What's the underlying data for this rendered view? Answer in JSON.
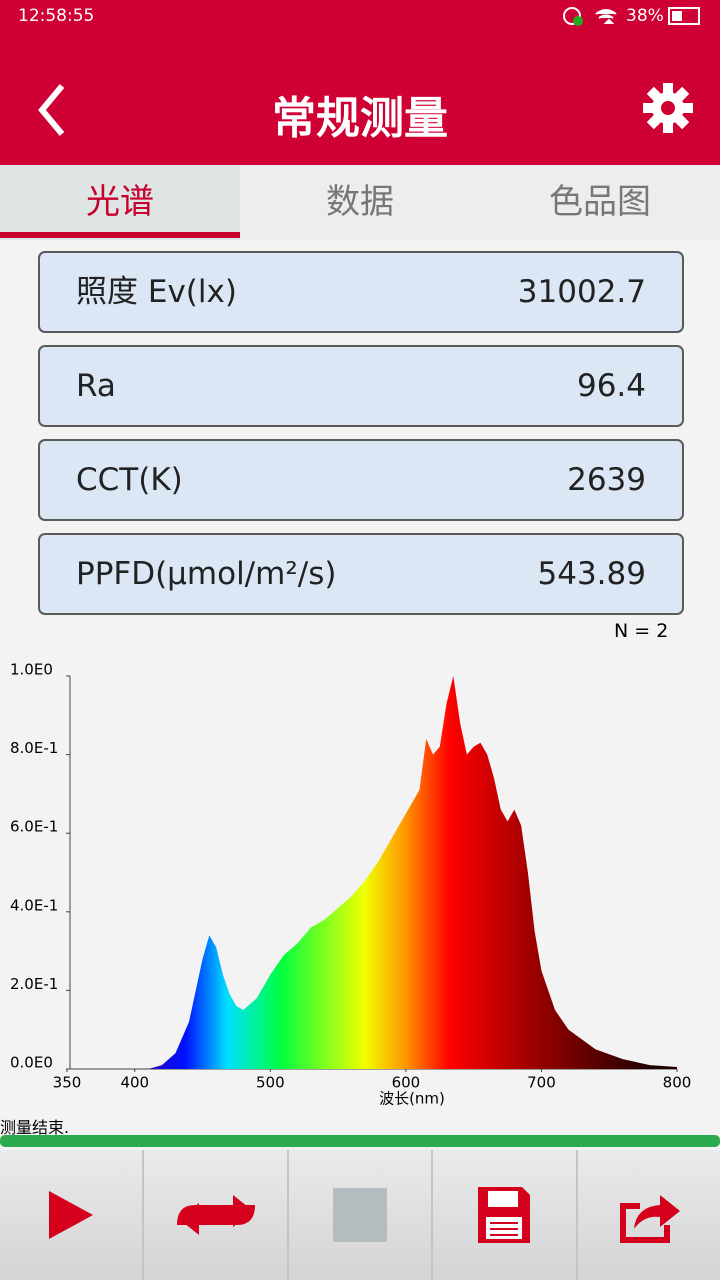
{
  "status_bar": {
    "time": "12:58:55",
    "battery": "38%"
  },
  "header": {
    "title": "常规测量"
  },
  "tabs": [
    "光谱",
    "数据",
    "色品图"
  ],
  "readings": [
    {
      "label": "照度 Ev(lx)",
      "value": 31002.7
    },
    {
      "label": "Ra",
      "value": 96.4
    },
    {
      "label": "CCT(K)",
      "value": 2639
    },
    {
      "label": "PPFD(μmol/m²/s)",
      "value": 543.89
    }
  ],
  "sample_count": "N = 2",
  "chart_data": {
    "type": "area",
    "x_label": "波长(nm)",
    "x": [
      410,
      420,
      430,
      440,
      445,
      450,
      455,
      460,
      465,
      470,
      475,
      480,
      490,
      500,
      510,
      520,
      530,
      540,
      550,
      560,
      570,
      580,
      590,
      600,
      610,
      615,
      620,
      625,
      630,
      635,
      640,
      645,
      650,
      655,
      660,
      665,
      670,
      675,
      680,
      685,
      690,
      695,
      700,
      710,
      720,
      740,
      760,
      780,
      800
    ],
    "values": [
      0,
      0.01,
      0.04,
      0.12,
      0.2,
      0.28,
      0.34,
      0.31,
      0.24,
      0.19,
      0.16,
      0.15,
      0.18,
      0.24,
      0.29,
      0.32,
      0.36,
      0.38,
      0.41,
      0.44,
      0.48,
      0.53,
      0.59,
      0.65,
      0.71,
      0.84,
      0.8,
      0.82,
      0.93,
      1.0,
      0.88,
      0.8,
      0.82,
      0.83,
      0.8,
      0.74,
      0.66,
      0.63,
      0.66,
      0.62,
      0.5,
      0.35,
      0.25,
      0.15,
      0.1,
      0.05,
      0.025,
      0.01,
      0.005
    ],
    "xlim": [
      350,
      800
    ],
    "xticks": [
      350,
      400,
      500,
      600,
      700,
      800
    ],
    "ylim": [
      0,
      1
    ],
    "yticks": [
      {
        "value": 0,
        "label": "0.0E0"
      },
      {
        "value": 0.2,
        "label": "2.0E-1"
      },
      {
        "value": 0.4,
        "label": "4.0E-1"
      },
      {
        "value": 0.6,
        "label": "6.0E-1"
      },
      {
        "value": 0.8,
        "label": "8.0E-1"
      },
      {
        "value": 1,
        "label": "1.0E0"
      }
    ]
  },
  "status_message": "测量结束."
}
